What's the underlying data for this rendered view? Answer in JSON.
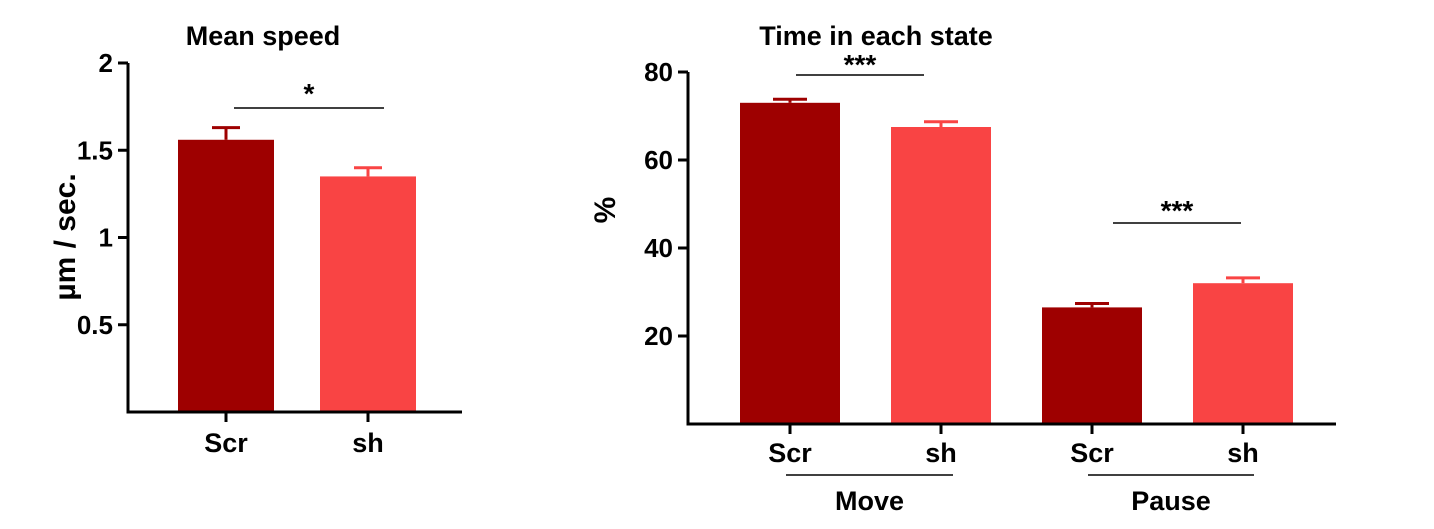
{
  "chart_data": [
    {
      "type": "bar",
      "title": "Mean speed",
      "ylabel": "µm / sec.",
      "xlabel": "",
      "ylim": [
        0,
        2
      ],
      "yticks": [
        {
          "value": 0.5,
          "label": "0.5"
        },
        {
          "value": 1,
          "label": "1"
        },
        {
          "value": 1.5,
          "label": "1.5"
        },
        {
          "value": 2,
          "label": "2"
        }
      ],
      "categories": [
        "Scr",
        "sh"
      ],
      "values": [
        1.56,
        1.35
      ],
      "errors": [
        0.07,
        0.05
      ],
      "colors": [
        "#9e0000",
        "#f94444"
      ],
      "significance": [
        {
          "from": 0,
          "to": 1,
          "label": "*"
        }
      ]
    },
    {
      "type": "bar",
      "title": "Time in each state",
      "ylabel": "%",
      "xlabel": "",
      "ylim": [
        0,
        80
      ],
      "yticks": [
        {
          "value": 20,
          "label": "20"
        },
        {
          "value": 40,
          "label": "40"
        },
        {
          "value": 60,
          "label": "60"
        },
        {
          "value": 80,
          "label": "80"
        }
      ],
      "categories": [
        "Scr",
        "sh",
        "Scr",
        "sh"
      ],
      "groups": [
        {
          "label": "Move",
          "indices": [
            0,
            1
          ]
        },
        {
          "label": "Pause",
          "indices": [
            2,
            3
          ]
        }
      ],
      "values": [
        73,
        67.5,
        26.5,
        32
      ],
      "errors": [
        0.8,
        1.2,
        0.9,
        1.2
      ],
      "colors": [
        "#9e0000",
        "#f94444",
        "#9e0000",
        "#f94444"
      ],
      "significance": [
        {
          "from": 0,
          "to": 1,
          "label": "***"
        },
        {
          "from": 2,
          "to": 3,
          "label": "***"
        }
      ]
    }
  ]
}
